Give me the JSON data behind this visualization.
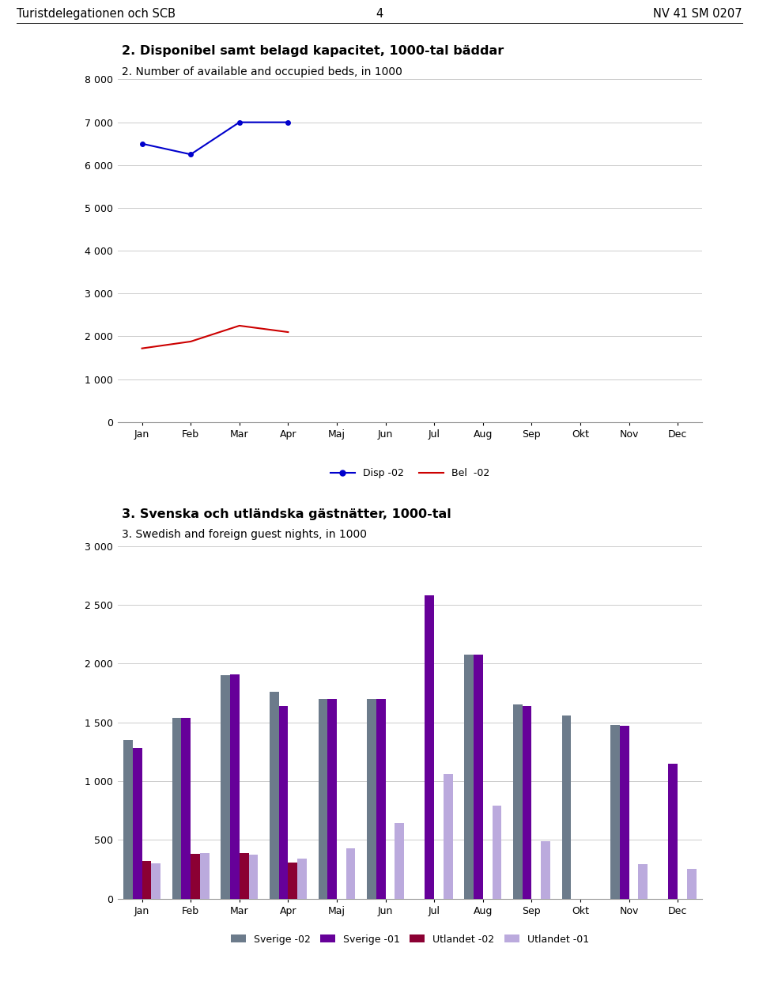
{
  "header_left": "Turistdelegationen och SCB",
  "header_center": "4",
  "header_right": "NV 41 SM 0207",
  "chart1": {
    "title_bold": "2. Disponibel samt belagd kapacitet, 1000-tal bäddar",
    "title_normal": "2. Number of available and occupied beds, in 1000",
    "months": [
      "Jan",
      "Feb",
      "Mar",
      "Apr",
      "Maj",
      "Jun",
      "Jul",
      "Aug",
      "Sep",
      "Okt",
      "Nov",
      "Dec"
    ],
    "disp02": [
      6500,
      6250,
      7000,
      7000,
      null,
      null,
      null,
      null,
      null,
      null,
      null,
      null
    ],
    "bel02": [
      1720,
      1880,
      2250,
      2100,
      null,
      null,
      null,
      null,
      null,
      null,
      null,
      null
    ],
    "ylim": [
      0,
      8000
    ],
    "yticks": [
      0,
      1000,
      2000,
      3000,
      4000,
      5000,
      6000,
      7000,
      8000
    ],
    "ytick_labels": [
      "0",
      "1 000",
      "2 000",
      "3 000",
      "4 000",
      "5 000",
      "6 000",
      "7 000",
      "8 000"
    ],
    "disp_color": "#0000CC",
    "bel_color": "#CC0000",
    "legend_disp": "Disp -02",
    "legend_bel": "Bel  -02"
  },
  "chart2": {
    "title_bold": "3. Svenska och utländska gästnätter, 1000-tal",
    "title_normal": "3. Swedish and foreign guest nights, in 1000",
    "months": [
      "Jan",
      "Feb",
      "Mar",
      "Apr",
      "Maj",
      "Jun",
      "Jul",
      "Aug",
      "Sep",
      "Okt",
      "Nov",
      "Dec"
    ],
    "sverige02": [
      1350,
      1540,
      1900,
      1760,
      1700,
      1700,
      null,
      2080,
      1650,
      1560,
      1480,
      null
    ],
    "sverige01": [
      1280,
      1540,
      1910,
      1640,
      1700,
      1700,
      2580,
      2080,
      1640,
      null,
      1470,
      1150
    ],
    "utlandet02": [
      320,
      380,
      390,
      310,
      null,
      null,
      null,
      null,
      null,
      null,
      null,
      null
    ],
    "utlandet01": [
      300,
      390,
      375,
      340,
      430,
      645,
      1060,
      790,
      490,
      null,
      295,
      255
    ],
    "ylim": [
      0,
      3000
    ],
    "yticks": [
      0,
      500,
      1000,
      1500,
      2000,
      2500,
      3000
    ],
    "ytick_labels": [
      "0",
      "500",
      "1 000",
      "1 500",
      "2 000",
      "2 500",
      "3 000"
    ],
    "color_sverige02": "#6C7B8B",
    "color_sverige01": "#660099",
    "color_utlandet02": "#8B0033",
    "color_utlandet01": "#BBAADD",
    "legend_s02": "Sverige -02",
    "legend_s01": "Sverige -01",
    "legend_u02": "Utlandet -02",
    "legend_u01": "Utlandet -01"
  },
  "background_color": "#FFFFFF"
}
